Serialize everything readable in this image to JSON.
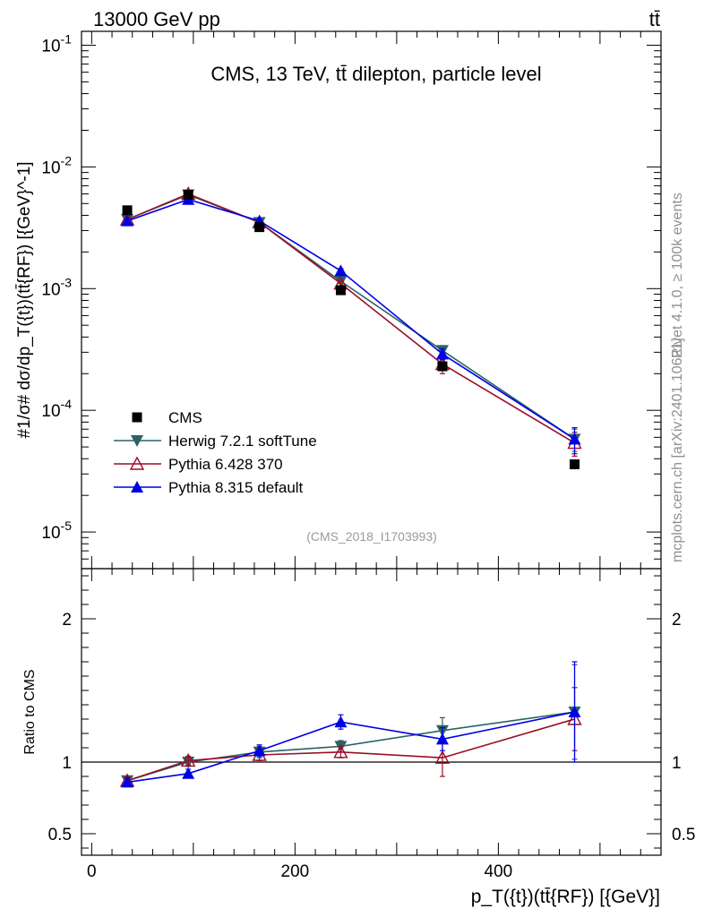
{
  "header": {
    "beam_label": "13000 GeV pp",
    "process_label": "tt̄"
  },
  "side": {
    "rivet_label": "Rivet 4.1.0, ≥ 100k events",
    "site_label": "mcplots.cern.ch [arXiv:2401.10621]"
  },
  "colors": {
    "cms": "#000000",
    "herwig": "#2b6363",
    "pythia6": "#990f26",
    "pythia8": "#0000e6"
  },
  "chart_data": [
    {
      "type": "scatter",
      "panel": "main",
      "title": "CMS, 13 TeV, tt̄ dilepton, particle level",
      "analysis_tag": "(CMS_2018_I1703993)",
      "ylabel": "#1/σ# dσ/dp_T({t})(tt̄{RF}) [{GeV}^-1]",
      "yscale": "log",
      "ylim": [
        5e-06,
        0.13
      ],
      "xlim": [
        -10,
        560
      ],
      "y_ticks": [
        {
          "label": "10^-1",
          "value": 0.1
        },
        {
          "label": "10^-2",
          "value": 0.01
        },
        {
          "label": "10^-3",
          "value": 0.001
        },
        {
          "label": "10^-4",
          "value": 0.0001
        },
        {
          "label": "10^-5",
          "value": 1e-05
        }
      ],
      "legend_position": "bottom-left",
      "series": [
        {
          "name": "CMS",
          "key": "cms",
          "marker": "square",
          "line": false,
          "x": [
            35,
            95,
            165,
            245,
            345,
            475
          ],
          "y": [
            0.0044,
            0.0059,
            0.0032,
            0.00097,
            0.00023,
            3.6e-05
          ],
          "err": [
            0,
            0,
            0,
            0,
            0,
            0
          ]
        },
        {
          "name": "Herwig 7.2.1 softTune",
          "key": "herwig",
          "marker": "triangle-down",
          "line": true,
          "x": [
            35,
            95,
            165,
            245,
            345,
            475
          ],
          "y": [
            0.0037,
            0.0059,
            0.0035,
            0.00115,
            0.00031,
            5.8e-05
          ],
          "err": [
            6e-05,
            0.0001,
            5e-05,
            5e-05,
            3e-05,
            1.2e-05
          ]
        },
        {
          "name": "Pythia 6.428 370",
          "key": "pythia6",
          "marker": "triangle-open",
          "line": true,
          "x": [
            35,
            95,
            165,
            245,
            345,
            475
          ],
          "y": [
            0.0037,
            0.006,
            0.0035,
            0.0011,
            0.00024,
            5.4e-05
          ],
          "err": [
            6e-05,
            0.0001,
            5e-05,
            5e-05,
            4e-05,
            1.2e-05
          ]
        },
        {
          "name": "Pythia 8.315 default",
          "key": "pythia8",
          "marker": "triangle-up",
          "line": true,
          "x": [
            35,
            95,
            165,
            245,
            345,
            475
          ],
          "y": [
            0.0036,
            0.0054,
            0.0036,
            0.0014,
            0.00029,
            5.8e-05
          ],
          "err": [
            6e-05,
            0.0001,
            5e-05,
            6e-05,
            3e-05,
            1.4e-05
          ]
        }
      ]
    },
    {
      "type": "line",
      "panel": "ratio",
      "ylabel": "Ratio to CMS",
      "xlabel": "p_T({t})(tt̄{RF}) [{GeV}]",
      "ylim": [
        0.35,
        2.35
      ],
      "xlim": [
        -10,
        560
      ],
      "x_ticks": [
        0,
        200,
        400
      ],
      "y_ticks": [
        0.5,
        1,
        2
      ],
      "reference_line": 1,
      "series": [
        {
          "name": "Herwig 7.2.1 softTune",
          "key": "herwig",
          "marker": "triangle-down",
          "x": [
            35,
            95,
            165,
            245,
            345,
            475
          ],
          "y": [
            0.87,
            1.0,
            1.07,
            1.11,
            1.22,
            1.35
          ],
          "err": [
            0.03,
            0.03,
            0.04,
            0.04,
            0.09,
            0.33
          ]
        },
        {
          "name": "Pythia 6.428 370",
          "key": "pythia6",
          "marker": "triangle-open",
          "x": [
            35,
            95,
            165,
            245,
            345,
            475
          ],
          "y": [
            0.87,
            1.01,
            1.05,
            1.07,
            1.03,
            1.3
          ],
          "err": [
            0.03,
            0.03,
            0.04,
            0.04,
            0.13,
            0.22
          ]
        },
        {
          "name": "Pythia 8.315 default",
          "key": "pythia8",
          "marker": "triangle-up",
          "x": [
            35,
            95,
            165,
            245,
            345,
            475
          ],
          "y": [
            0.86,
            0.92,
            1.08,
            1.28,
            1.16,
            1.35
          ],
          "err": [
            0.03,
            0.03,
            0.04,
            0.05,
            0.08,
            0.35
          ]
        }
      ]
    }
  ]
}
